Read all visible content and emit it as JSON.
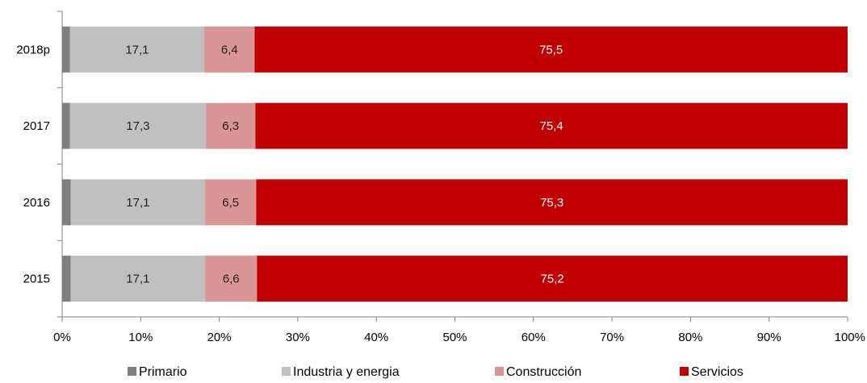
{
  "chart_data": {
    "type": "bar",
    "orientation": "horizontal",
    "stacked": true,
    "categories": [
      "2018p",
      "2017",
      "2016",
      "2015"
    ],
    "series": [
      {
        "name": "Primario",
        "values": [
          1.0,
          1.0,
          1.1,
          1.1
        ],
        "color": "#7f7f7f",
        "labels": [
          "",
          "",
          "",
          ""
        ],
        "label_color": "#000000"
      },
      {
        "name": "Industria y energia",
        "values": [
          17.1,
          17.3,
          17.1,
          17.1
        ],
        "color": "#c0c0c0",
        "labels": [
          "17,1",
          "17,3",
          "17,1",
          "17,1"
        ],
        "label_color": "#222222"
      },
      {
        "name": "Construcción",
        "values": [
          6.4,
          6.3,
          6.5,
          6.6
        ],
        "color": "#d99694",
        "labels": [
          "6,4",
          "6,3",
          "6,5",
          "6,6"
        ],
        "label_color": "#222222"
      },
      {
        "name": "Servicios",
        "values": [
          75.5,
          75.4,
          75.3,
          75.2
        ],
        "color": "#c00000",
        "labels": [
          "75,5",
          "75,4",
          "75,3",
          "75,2"
        ],
        "label_color": "#ffffff"
      }
    ],
    "xlim": [
      0,
      100
    ],
    "xticks": [
      "0%",
      "10%",
      "20%",
      "30%",
      "40%",
      "50%",
      "60%",
      "70%",
      "80%",
      "90%",
      "100%"
    ],
    "grid": false,
    "legend_position": "bottom"
  }
}
